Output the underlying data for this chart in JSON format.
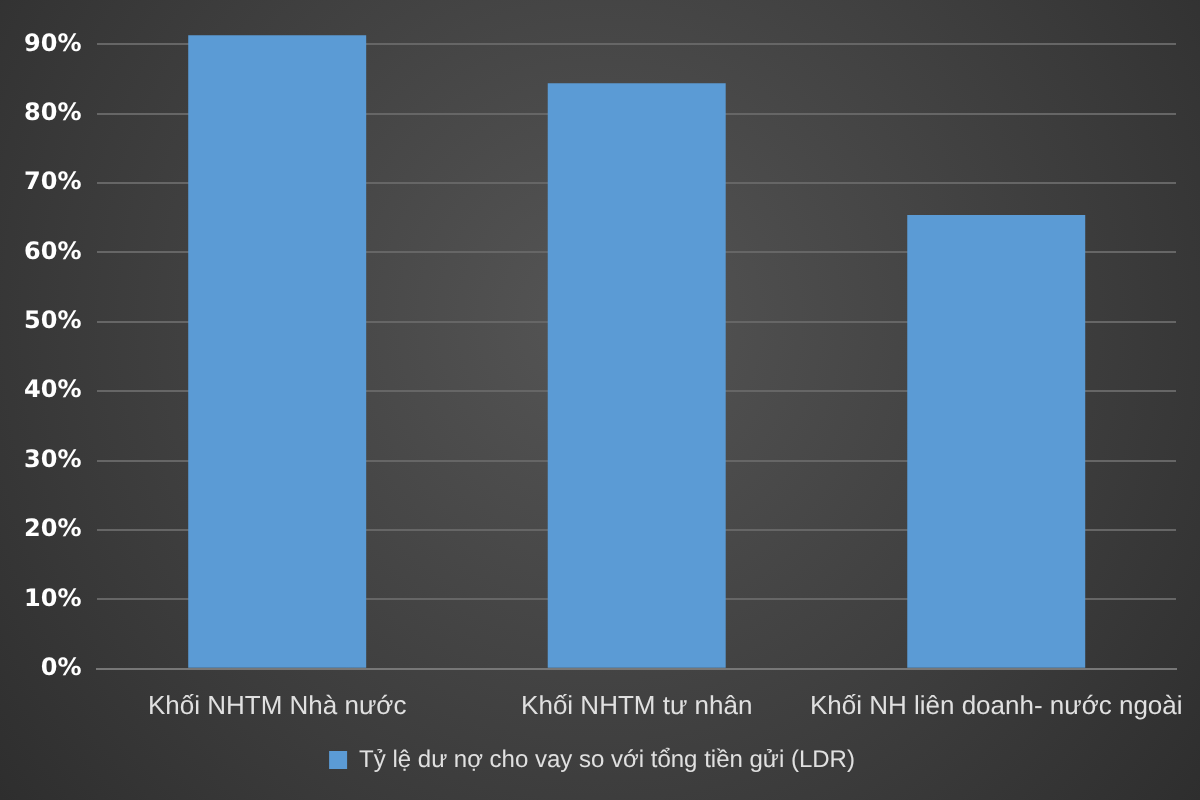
{
  "chart_data": {
    "type": "bar",
    "categories": [
      "Khối NHTM Nhà nước",
      "Khối NHTM tư nhân",
      "Khối NH liên doanh- nước ngoài"
    ],
    "series": [
      {
        "name": "Tỷ lệ dư nợ cho vay so với tổng tiền gửi (LDR)",
        "color": "#5b9bd5",
        "values": [
          91.3,
          84.4,
          65.4
        ]
      }
    ],
    "ylim": [
      0,
      92
    ],
    "yticks": [
      {
        "value": 0,
        "label": "0%"
      },
      {
        "value": 10,
        "label": "10%"
      },
      {
        "value": 20,
        "label": "20%"
      },
      {
        "value": 30,
        "label": "30%"
      },
      {
        "value": 40,
        "label": "40%"
      },
      {
        "value": 50,
        "label": "50%"
      },
      {
        "value": 60,
        "label": "60%"
      },
      {
        "value": 70,
        "label": "70%"
      },
      {
        "value": 80,
        "label": "80%"
      },
      {
        "value": 90,
        "label": "90%"
      }
    ],
    "grid": "y",
    "legend": "bottom"
  }
}
